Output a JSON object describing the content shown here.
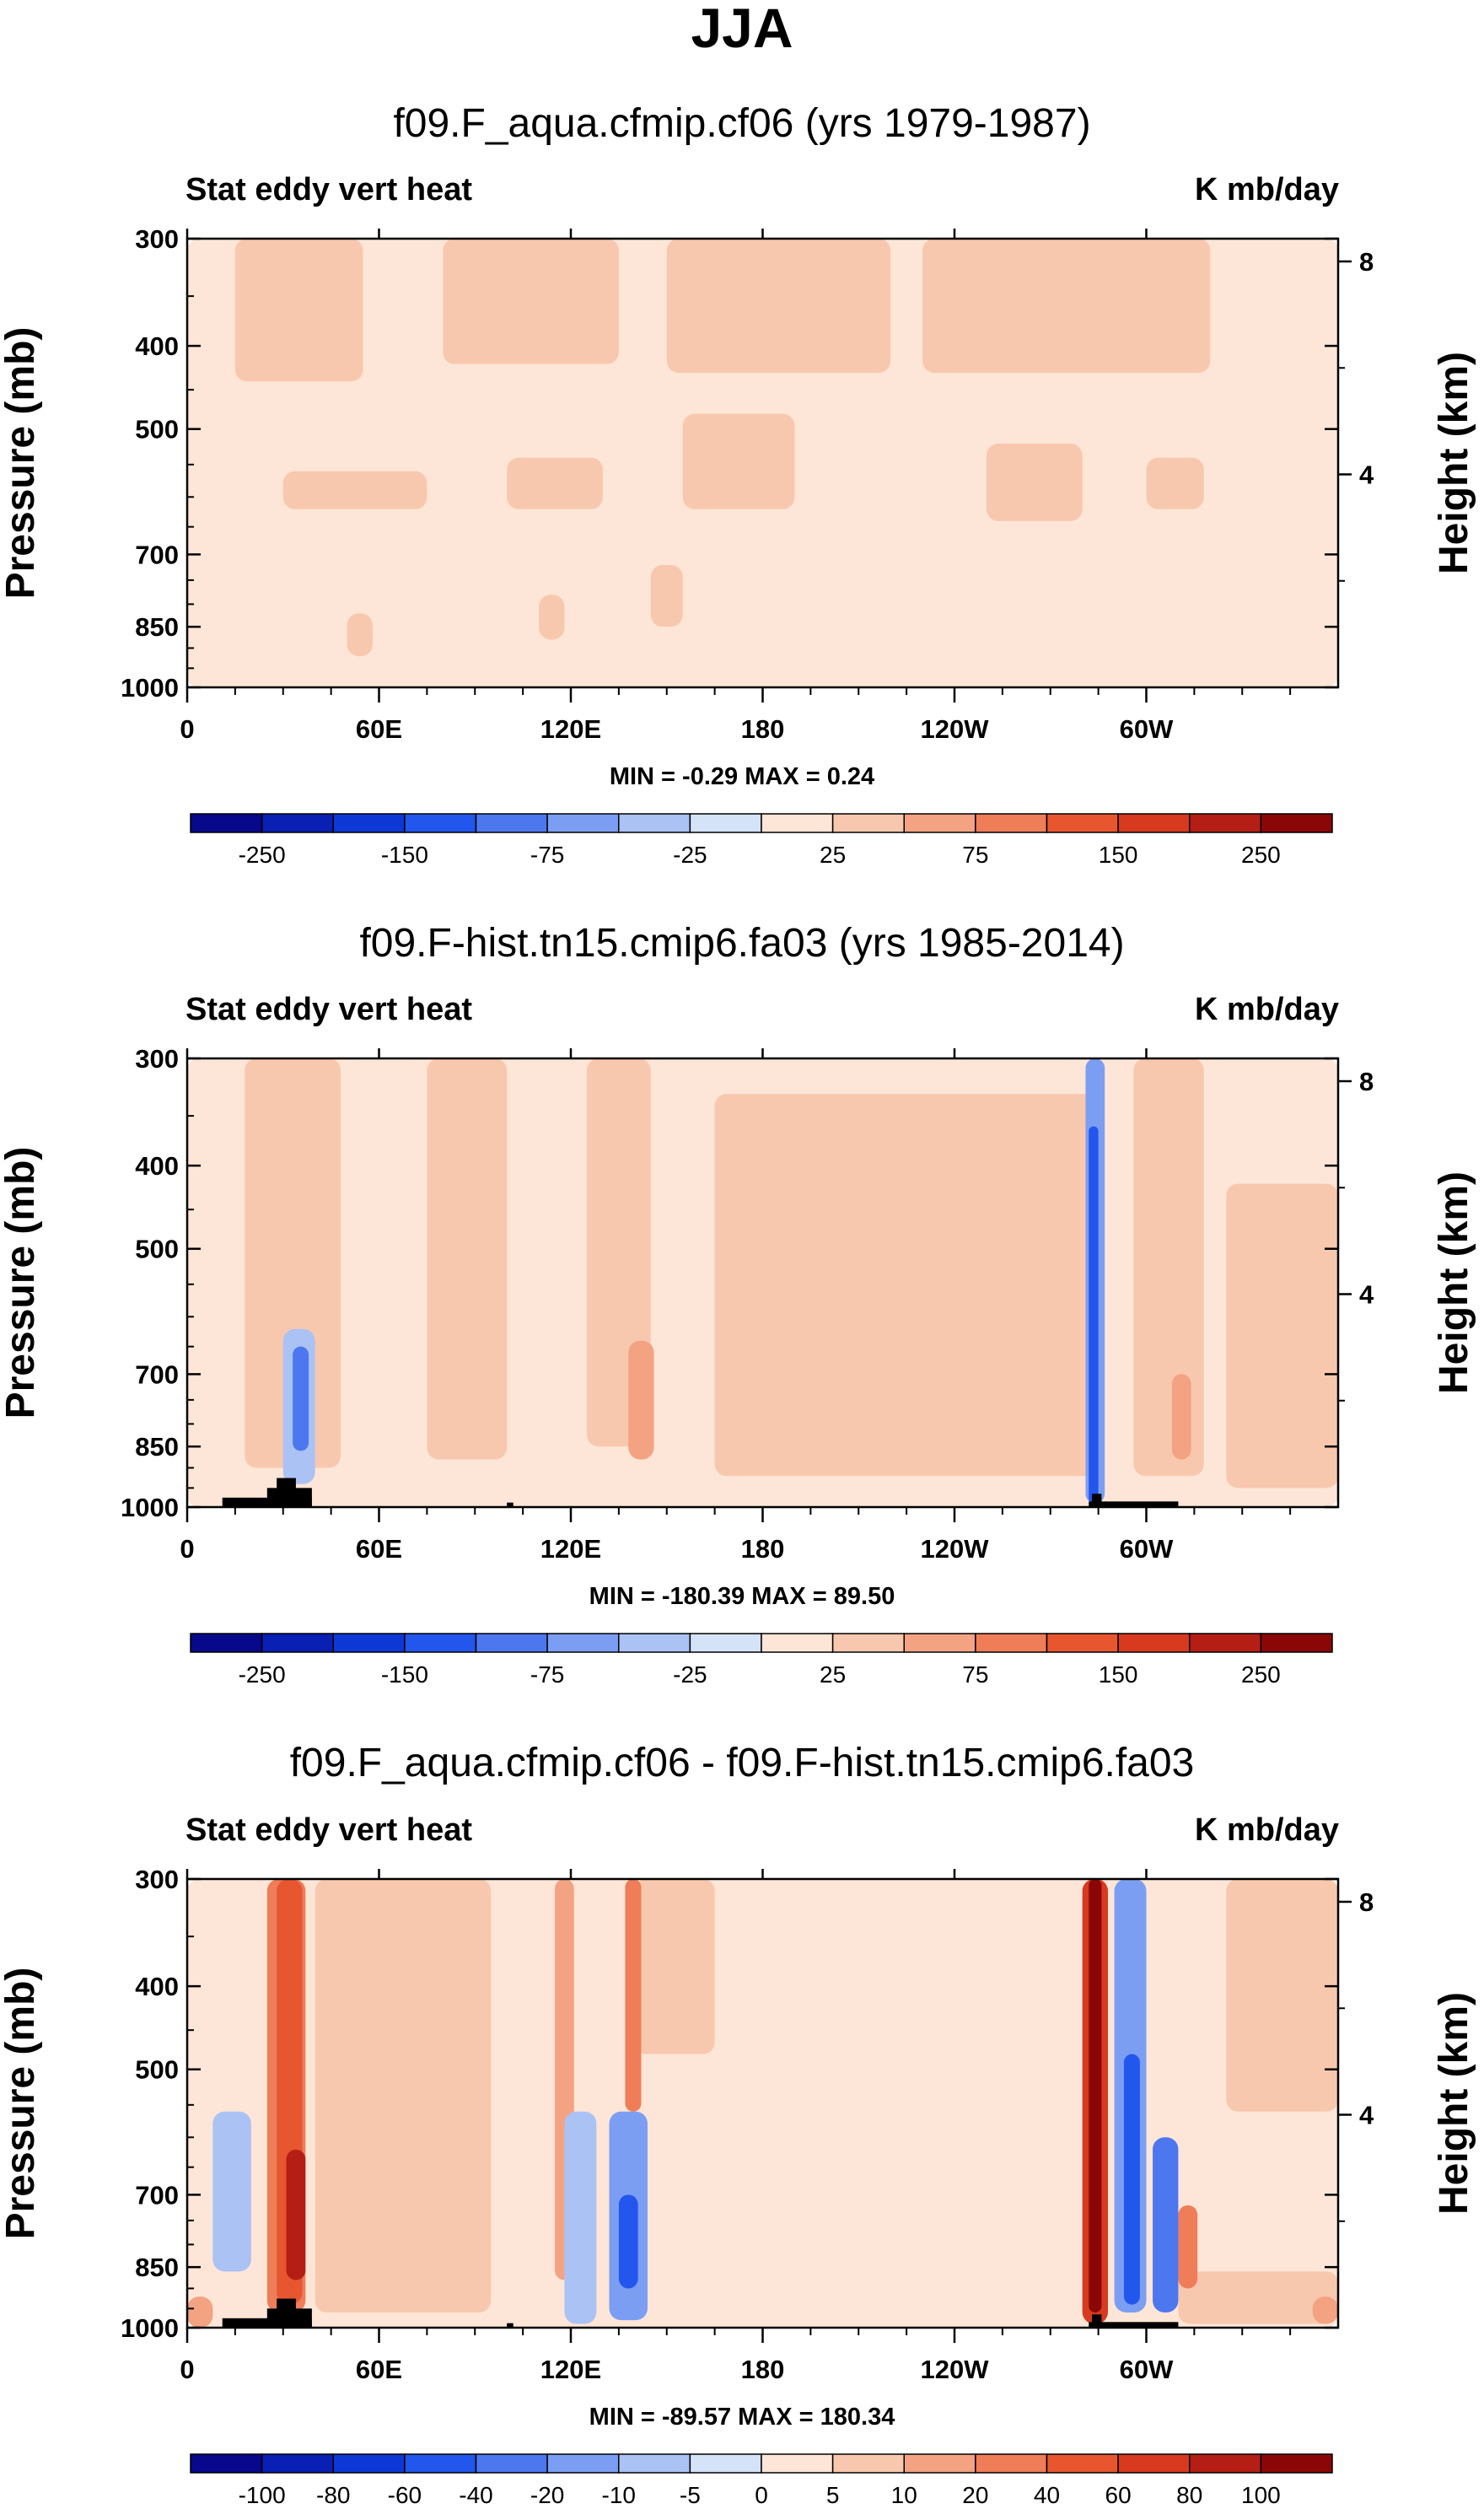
{
  "title": "JJA",
  "common": {
    "pressure_label": "Pressure (mb)",
    "height_label": "Height (km)",
    "left_ticks": [
      "300",
      "400",
      "500",
      "700",
      "850",
      "1000"
    ],
    "right_ticks": [
      "8",
      "4"
    ],
    "x_ticks": [
      "0",
      "60E",
      "120E",
      "180",
      "120W",
      "60W"
    ]
  },
  "colors": {
    "cbar": [
      "#08088c",
      "#0a1fb4",
      "#0d38d6",
      "#2356ec",
      "#4d77ef",
      "#7c9ef2",
      "#abc2f5",
      "#d5e3f8",
      "#fde6d7",
      "#f8c8ae",
      "#f3a382",
      "#ee7d58",
      "#e85630",
      "#d73a1f",
      "#b41e14",
      "#8b0707"
    ],
    "land": "#000000"
  },
  "panels": [
    {
      "subtitle": "f09.F_aqua.cfmip.cf06 (yrs 1979-1987)",
      "left_label": "Stat eddy vert heat",
      "right_label": "K mb/day",
      "min_max": "MIN =  -0.29  MAX =   0.24",
      "colorbar_labels": [
        "-250",
        "-150",
        "-75",
        "-25",
        "25",
        "75",
        "150",
        "250"
      ]
    },
    {
      "subtitle": "f09.F-hist.tn15.cmip6.fa03 (yrs 1985-2014)",
      "left_label": "Stat eddy vert heat",
      "right_label": "K mb/day",
      "min_max": "MIN = -180.39  MAX =  89.50",
      "colorbar_labels": [
        "-250",
        "-150",
        "-75",
        "-25",
        "25",
        "75",
        "150",
        "250"
      ]
    },
    {
      "subtitle": "f09.F_aqua.cfmip.cf06 - f09.F-hist.tn15.cmip6.fa03",
      "left_label": "Stat eddy vert heat",
      "right_label": "K mb/day",
      "min_max": "MIN = -89.57  MAX = 180.34",
      "colorbar_labels": [
        "-100",
        "-80",
        "-60",
        "-40",
        "-20",
        "-10",
        "-5",
        "0",
        "5",
        "10",
        "20",
        "40",
        "60",
        "80",
        "100"
      ]
    }
  ],
  "chart_data": [
    {
      "type": "heatmap",
      "title": "f09.F_aqua.cfmip.cf06 (yrs 1979-1987)",
      "variable": "Stat eddy vert heat",
      "units": "K mb/day",
      "xlabel": "",
      "ylabel": "Pressure (mb)",
      "y2label": "Height (km)",
      "xlim": [
        0,
        360
      ],
      "ylim": [
        1000,
        300
      ],
      "min": -0.29,
      "max": 0.24,
      "levels": [
        -250,
        -200,
        -150,
        -100,
        -75,
        -50,
        -25,
        0,
        25,
        50,
        75,
        100,
        150,
        200,
        250
      ],
      "features": [
        {
          "lon": 0,
          "lon_width": 360,
          "p_top": 300,
          "p_bot": 1000,
          "level_index": 7
        },
        {
          "lon": 15,
          "lon_width": 40,
          "p_top": 300,
          "p_bot": 440,
          "level_index": 8
        },
        {
          "lon": 80,
          "lon_width": 55,
          "p_top": 300,
          "p_bot": 420,
          "level_index": 8
        },
        {
          "lon": 150,
          "lon_width": 70,
          "p_top": 300,
          "p_bot": 430,
          "level_index": 8
        },
        {
          "lon": 230,
          "lon_width": 90,
          "p_top": 300,
          "p_bot": 430,
          "level_index": 8
        },
        {
          "lon": 30,
          "lon_width": 45,
          "p_top": 560,
          "p_bot": 620,
          "level_index": 8
        },
        {
          "lon": 100,
          "lon_width": 30,
          "p_top": 540,
          "p_bot": 620,
          "level_index": 8
        },
        {
          "lon": 155,
          "lon_width": 35,
          "p_top": 480,
          "p_bot": 620,
          "level_index": 8
        },
        {
          "lon": 250,
          "lon_width": 30,
          "p_top": 520,
          "p_bot": 640,
          "level_index": 8
        },
        {
          "lon": 300,
          "lon_width": 18,
          "p_top": 540,
          "p_bot": 620,
          "level_index": 8
        },
        {
          "lon": 50,
          "lon_width": 8,
          "p_top": 820,
          "p_bot": 920,
          "level_index": 8
        },
        {
          "lon": 110,
          "lon_width": 8,
          "p_top": 780,
          "p_bot": 880,
          "level_index": 8
        },
        {
          "lon": 145,
          "lon_width": 10,
          "p_top": 720,
          "p_bot": 850,
          "level_index": 8
        }
      ]
    },
    {
      "type": "heatmap",
      "title": "f09.F-hist.tn15.cmip6.fa03 (yrs 1985-2014)",
      "variable": "Stat eddy vert heat",
      "units": "K mb/day",
      "xlabel": "",
      "ylabel": "Pressure (mb)",
      "y2label": "Height (km)",
      "xlim": [
        0,
        360
      ],
      "ylim": [
        1000,
        300
      ],
      "min": -180.39,
      "max": 89.5,
      "levels": [
        -250,
        -200,
        -150,
        -100,
        -75,
        -50,
        -25,
        0,
        25,
        50,
        75,
        100,
        150,
        200,
        250
      ],
      "features": [
        {
          "lon": 0,
          "lon_width": 360,
          "p_top": 300,
          "p_bot": 1000,
          "level_index": 7
        },
        {
          "lon": 18,
          "lon_width": 30,
          "p_top": 300,
          "p_bot": 900,
          "level_index": 8
        },
        {
          "lon": 75,
          "lon_width": 25,
          "p_top": 300,
          "p_bot": 880,
          "level_index": 8
        },
        {
          "lon": 125,
          "lon_width": 20,
          "p_top": 300,
          "p_bot": 850,
          "level_index": 8
        },
        {
          "lon": 165,
          "lon_width": 120,
          "p_top": 330,
          "p_bot": 920,
          "level_index": 8
        },
        {
          "lon": 296,
          "lon_width": 22,
          "p_top": 300,
          "p_bot": 920,
          "level_index": 8
        },
        {
          "lon": 325,
          "lon_width": 35,
          "p_top": 420,
          "p_bot": 950,
          "level_index": 8
        },
        {
          "lon": 138,
          "lon_width": 8,
          "p_top": 640,
          "p_bot": 880,
          "level_index": 9
        },
        {
          "lon": 308,
          "lon_width": 6,
          "p_top": 700,
          "p_bot": 880,
          "level_index": 9
        },
        {
          "lon": 30,
          "lon_width": 10,
          "p_top": 620,
          "p_bot": 940,
          "level_index": 6
        },
        {
          "lon": 33,
          "lon_width": 5,
          "p_top": 650,
          "p_bot": 860,
          "level_index": 4
        },
        {
          "lon": 281,
          "lon_width": 6,
          "p_top": 300,
          "p_bot": 990,
          "level_index": 5
        },
        {
          "lon": 282,
          "lon_width": 3,
          "p_top": 360,
          "p_bot": 990,
          "level_index": 3
        }
      ],
      "land": [
        {
          "lon": 11,
          "lon_width": 28,
          "p_top": 975,
          "p_bot": 1000
        },
        {
          "lon": 25,
          "lon_width": 14,
          "p_top": 950,
          "p_bot": 1000
        },
        {
          "lon": 28,
          "lon_width": 6,
          "p_top": 925,
          "p_bot": 1000
        },
        {
          "lon": 100,
          "lon_width": 2,
          "p_top": 988,
          "p_bot": 1000
        },
        {
          "lon": 282,
          "lon_width": 28,
          "p_top": 985,
          "p_bot": 1000
        },
        {
          "lon": 283,
          "lon_width": 3,
          "p_top": 965,
          "p_bot": 1000
        }
      ]
    },
    {
      "type": "heatmap",
      "title": "f09.F_aqua.cfmip.cf06 - f09.F-hist.tn15.cmip6.fa03",
      "variable": "Stat eddy vert heat",
      "units": "K mb/day",
      "xlabel": "",
      "ylabel": "Pressure (mb)",
      "y2label": "Height (km)",
      "xlim": [
        0,
        360
      ],
      "ylim": [
        1000,
        300
      ],
      "min": -89.57,
      "max": 180.34,
      "levels": [
        -100,
        -80,
        -60,
        -40,
        -20,
        -10,
        -5,
        0,
        5,
        10,
        20,
        40,
        60,
        80,
        100
      ],
      "features": [
        {
          "lon": 0,
          "lon_width": 360,
          "p_top": 300,
          "p_bot": 1000,
          "level_index": 7
        },
        {
          "lon": 40,
          "lon_width": 55,
          "p_top": 300,
          "p_bot": 960,
          "level_index": 8
        },
        {
          "lon": 140,
          "lon_width": 25,
          "p_top": 300,
          "p_bot": 480,
          "level_index": 8
        },
        {
          "lon": 325,
          "lon_width": 35,
          "p_top": 300,
          "p_bot": 560,
          "level_index": 8
        },
        {
          "lon": 310,
          "lon_width": 50,
          "p_top": 860,
          "p_bot": 990,
          "level_index": 8
        },
        {
          "lon": 25,
          "lon_width": 12,
          "p_top": 300,
          "p_bot": 960,
          "level_index": 10
        },
        {
          "lon": 28,
          "lon_width": 8,
          "p_top": 300,
          "p_bot": 940,
          "level_index": 11
        },
        {
          "lon": 31,
          "lon_width": 6,
          "p_top": 620,
          "p_bot": 880,
          "level_index": 13
        },
        {
          "lon": 115,
          "lon_width": 6,
          "p_top": 300,
          "p_bot": 880,
          "level_index": 9
        },
        {
          "lon": 137,
          "lon_width": 5,
          "p_top": 300,
          "p_bot": 560,
          "level_index": 10
        },
        {
          "lon": 280,
          "lon_width": 8,
          "p_top": 300,
          "p_bot": 990,
          "level_index": 12
        },
        {
          "lon": 282,
          "lon_width": 4,
          "p_top": 300,
          "p_bot": 960,
          "level_index": 14
        },
        {
          "lon": 0,
          "lon_width": 8,
          "p_top": 920,
          "p_bot": 1000,
          "level_index": 9
        },
        {
          "lon": 352,
          "lon_width": 8,
          "p_top": 920,
          "p_bot": 990,
          "level_index": 9
        },
        {
          "lon": 310,
          "lon_width": 6,
          "p_top": 720,
          "p_bot": 900,
          "level_index": 10
        },
        {
          "lon": 8,
          "lon_width": 12,
          "p_top": 560,
          "p_bot": 860,
          "level_index": 6
        },
        {
          "lon": 118,
          "lon_width": 10,
          "p_top": 560,
          "p_bot": 990,
          "level_index": 6
        },
        {
          "lon": 132,
          "lon_width": 12,
          "p_top": 560,
          "p_bot": 980,
          "level_index": 5
        },
        {
          "lon": 135,
          "lon_width": 6,
          "p_top": 700,
          "p_bot": 900,
          "level_index": 3
        },
        {
          "lon": 290,
          "lon_width": 10,
          "p_top": 300,
          "p_bot": 960,
          "level_index": 5
        },
        {
          "lon": 293,
          "lon_width": 5,
          "p_top": 480,
          "p_bot": 940,
          "level_index": 3
        },
        {
          "lon": 302,
          "lon_width": 8,
          "p_top": 600,
          "p_bot": 960,
          "level_index": 4
        }
      ],
      "land": [
        {
          "lon": 11,
          "lon_width": 28,
          "p_top": 975,
          "p_bot": 1000
        },
        {
          "lon": 25,
          "lon_width": 14,
          "p_top": 950,
          "p_bot": 1000
        },
        {
          "lon": 28,
          "lon_width": 6,
          "p_top": 925,
          "p_bot": 1000
        },
        {
          "lon": 100,
          "lon_width": 2,
          "p_top": 988,
          "p_bot": 1000
        },
        {
          "lon": 282,
          "lon_width": 28,
          "p_top": 985,
          "p_bot": 1000
        },
        {
          "lon": 283,
          "lon_width": 3,
          "p_top": 965,
          "p_bot": 1000
        }
      ]
    }
  ]
}
